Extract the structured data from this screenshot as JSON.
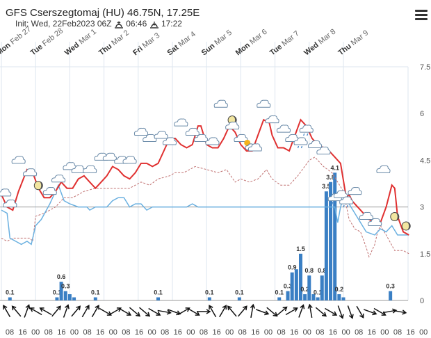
{
  "header": {
    "title": "GFS Cserszegtomaj (HU) 46.75N, 17.25E",
    "init_prefix": "Init: Wed, 22Feb2023 06Z",
    "sunrise": "06:46",
    "sunset": "17:22"
  },
  "colors": {
    "wave_height": "#e03030",
    "swell": "#6ab0e0",
    "wind_wave": "#c07070",
    "precip": "#3a7fc4",
    "grid": "#dde6ef",
    "refline": "#999999"
  },
  "chart_data": {
    "type": "line+bar",
    "y_right": {
      "ticks": [
        "0",
        "1.5",
        "3",
        "4.5",
        "6",
        "7.5"
      ],
      "range": [
        0,
        7.5
      ],
      "reference_line": 3
    },
    "days": [
      {
        "dow": "Mon",
        "date": "Feb 27"
      },
      {
        "dow": "Tue",
        "date": "Feb 28"
      },
      {
        "dow": "Wed",
        "date": "Mar 1"
      },
      {
        "dow": "Thu",
        "date": "Mar 2"
      },
      {
        "dow": "Fri",
        "date": "Mar 3"
      },
      {
        "dow": "Sat",
        "date": "Mar 4"
      },
      {
        "dow": "Sun",
        "date": "Mar 5"
      },
      {
        "dow": "Mon",
        "date": "Mar 6"
      },
      {
        "dow": "Tue",
        "date": "Mar 7"
      },
      {
        "dow": "Wed",
        "date": "Mar 8"
      },
      {
        "dow": "Thu",
        "date": "Mar 9"
      }
    ],
    "hour_labels": [
      "08",
      "16",
      "00",
      "08",
      "16",
      "00",
      "08",
      "16",
      "00",
      "08",
      "16",
      "00",
      "08",
      "16",
      "00",
      "08",
      "16",
      "00",
      "08",
      "16",
      "00",
      "08",
      "16",
      "00",
      "08",
      "16",
      "00",
      "08",
      "16",
      "00",
      "08",
      "16",
      "00"
    ],
    "series_main": [
      [
        0,
        3.4
      ],
      [
        4,
        3.0
      ],
      [
        8,
        2.9
      ],
      [
        12,
        3.5
      ],
      [
        18,
        4.2
      ],
      [
        22,
        4.1
      ],
      [
        26,
        3.6
      ],
      [
        30,
        3.3
      ],
      [
        34,
        3.3
      ],
      [
        38,
        3.5
      ],
      [
        42,
        3.8
      ],
      [
        46,
        3.6
      ],
      [
        50,
        3.6
      ],
      [
        54,
        3.9
      ],
      [
        58,
        4.0
      ],
      [
        62,
        3.8
      ],
      [
        66,
        3.6
      ],
      [
        70,
        3.8
      ],
      [
        74,
        4.0
      ],
      [
        78,
        4.3
      ],
      [
        82,
        4.2
      ],
      [
        86,
        4.0
      ],
      [
        90,
        3.9
      ],
      [
        94,
        4.1
      ],
      [
        98,
        4.4
      ],
      [
        102,
        4.4
      ],
      [
        106,
        4.3
      ],
      [
        110,
        4.4
      ],
      [
        114,
        4.8
      ],
      [
        118,
        5.2
      ],
      [
        122,
        5.2
      ],
      [
        126,
        5.0
      ],
      [
        130,
        4.9
      ],
      [
        134,
        5.0
      ],
      [
        138,
        5.6
      ],
      [
        140,
        5.6
      ],
      [
        144,
        5.0
      ],
      [
        148,
        4.9
      ],
      [
        152,
        4.9
      ],
      [
        156,
        5.2
      ],
      [
        160,
        5.6
      ],
      [
        164,
        5.4
      ],
      [
        168,
        5.0
      ],
      [
        172,
        4.8
      ],
      [
        176,
        4.8
      ],
      [
        180,
        5.3
      ],
      [
        184,
        5.8
      ],
      [
        188,
        5.7
      ],
      [
        190,
        5.3
      ],
      [
        194,
        4.9
      ],
      [
        198,
        4.9
      ],
      [
        202,
        4.8
      ],
      [
        206,
        5.3
      ],
      [
        210,
        5.8
      ],
      [
        214,
        5.6
      ],
      [
        218,
        5.2
      ],
      [
        222,
        5.0
      ],
      [
        226,
        4.9
      ],
      [
        230,
        4.8
      ],
      [
        234,
        4.6
      ],
      [
        238,
        4.4
      ],
      [
        242,
        3.3
      ],
      [
        244,
        3.4
      ],
      [
        246,
        3.2
      ],
      [
        250,
        3.0
      ],
      [
        254,
        2.8
      ],
      [
        258,
        2.6
      ],
      [
        262,
        2.5
      ],
      [
        266,
        2.5
      ],
      [
        270,
        3.0
      ],
      [
        274,
        3.7
      ],
      [
        276,
        3.6
      ],
      [
        278,
        2.7
      ],
      [
        282,
        2.2
      ],
      [
        286,
        2.1
      ]
    ],
    "series_swell": [
      [
        0,
        2.9
      ],
      [
        4,
        2.8
      ],
      [
        6,
        2.0
      ],
      [
        10,
        1.9
      ],
      [
        14,
        1.8
      ],
      [
        18,
        1.9
      ],
      [
        21,
        1.8
      ],
      [
        24,
        2.4
      ],
      [
        28,
        2.6
      ],
      [
        34,
        3.1
      ],
      [
        40,
        3.7
      ],
      [
        44,
        3.2
      ],
      [
        48,
        3.1
      ],
      [
        54,
        3.0
      ],
      [
        60,
        3.0
      ],
      [
        62,
        2.9
      ],
      [
        66,
        3.0
      ],
      [
        70,
        3.0
      ],
      [
        74,
        3.0
      ],
      [
        78,
        3.2
      ],
      [
        82,
        3.3
      ],
      [
        86,
        3.3
      ],
      [
        90,
        3.0
      ],
      [
        94,
        3.1
      ],
      [
        98,
        3.1
      ],
      [
        102,
        2.9
      ],
      [
        106,
        3.0
      ],
      [
        110,
        3.0
      ],
      [
        114,
        3.0
      ],
      [
        118,
        3.0
      ],
      [
        122,
        3.0
      ],
      [
        126,
        3.0
      ],
      [
        130,
        3.0
      ],
      [
        134,
        3.1
      ],
      [
        138,
        3.0
      ],
      [
        142,
        3.0
      ],
      [
        146,
        3.0
      ],
      [
        150,
        3.0
      ],
      [
        154,
        3.0
      ],
      [
        158,
        3.0
      ],
      [
        162,
        3.0
      ],
      [
        166,
        3.0
      ],
      [
        170,
        3.0
      ],
      [
        174,
        3.0
      ],
      [
        178,
        3.0
      ],
      [
        182,
        3.0
      ],
      [
        186,
        3.0
      ],
      [
        190,
        3.0
      ],
      [
        194,
        3.0
      ],
      [
        198,
        3.0
      ],
      [
        202,
        3.0
      ],
      [
        206,
        3.0
      ],
      [
        210,
        3.0
      ],
      [
        214,
        3.0
      ],
      [
        218,
        3.0
      ],
      [
        222,
        3.0
      ],
      [
        226,
        3.0
      ],
      [
        230,
        3.0
      ],
      [
        234,
        3.0
      ],
      [
        236,
        2.5
      ],
      [
        238,
        3.0
      ],
      [
        240,
        3.3
      ],
      [
        244,
        3.1
      ],
      [
        248,
        2.8
      ],
      [
        252,
        2.5
      ],
      [
        256,
        2.2
      ],
      [
        262,
        2.1
      ],
      [
        266,
        2.3
      ],
      [
        270,
        2.2
      ],
      [
        274,
        2.4
      ],
      [
        278,
        2.1
      ],
      [
        286,
        2.1
      ]
    ],
    "series_wind": [
      [
        0,
        2.0
      ],
      [
        4,
        1.9
      ],
      [
        8,
        2.0
      ],
      [
        14,
        2.0
      ],
      [
        20,
        2.0
      ],
      [
        22,
        1.9
      ],
      [
        24,
        2.7
      ],
      [
        30,
        2.8
      ],
      [
        38,
        3.0
      ],
      [
        44,
        3.3
      ],
      [
        50,
        3.3
      ],
      [
        58,
        3.5
      ],
      [
        66,
        3.6
      ],
      [
        74,
        3.6
      ],
      [
        82,
        3.6
      ],
      [
        90,
        3.6
      ],
      [
        98,
        3.8
      ],
      [
        104,
        3.7
      ],
      [
        110,
        3.9
      ],
      [
        118,
        4.0
      ],
      [
        122,
        4.1
      ],
      [
        128,
        4.1
      ],
      [
        136,
        4.3
      ],
      [
        144,
        4.2
      ],
      [
        152,
        4.1
      ],
      [
        158,
        4.2
      ],
      [
        164,
        3.8
      ],
      [
        168,
        3.9
      ],
      [
        174,
        3.8
      ],
      [
        180,
        3.9
      ],
      [
        186,
        4.2
      ],
      [
        190,
        3.9
      ],
      [
        196,
        3.7
      ],
      [
        202,
        3.7
      ],
      [
        208,
        4.0
      ],
      [
        216,
        4.5
      ],
      [
        220,
        4.6
      ],
      [
        226,
        4.3
      ],
      [
        232,
        4.1
      ],
      [
        236,
        3.8
      ],
      [
        240,
        3.5
      ],
      [
        244,
        2.6
      ],
      [
        248,
        2.3
      ],
      [
        252,
        2.2
      ],
      [
        256,
        1.7
      ],
      [
        258,
        1.4
      ],
      [
        262,
        1.8
      ],
      [
        264,
        2.2
      ],
      [
        266,
        2.4
      ],
      [
        270,
        2.1
      ],
      [
        276,
        1.6
      ],
      [
        282,
        1.6
      ],
      [
        286,
        1.5
      ]
    ],
    "precipitation": [
      {
        "x": 6,
        "value": 0.1,
        "label": "0.1"
      },
      {
        "x": 39,
        "value": 0.1,
        "label": "0.1"
      },
      {
        "x": 42,
        "value": 0.6,
        "label": "0.6"
      },
      {
        "x": 45,
        "value": 0.3,
        "label": "0.3"
      },
      {
        "x": 48,
        "value": 0.2,
        "label": ""
      },
      {
        "x": 51,
        "value": 0.1,
        "label": ""
      },
      {
        "x": 66,
        "value": 0.1,
        "label": "0.1"
      },
      {
        "x": 110,
        "value": 0.1,
        "label": "0.1"
      },
      {
        "x": 146,
        "value": 0.1,
        "label": "0.1"
      },
      {
        "x": 167,
        "value": 0.1,
        "label": "0.1"
      },
      {
        "x": 195,
        "value": 0.1,
        "label": "0.1"
      },
      {
        "x": 201,
        "value": 0.3,
        "label": "0.3"
      },
      {
        "x": 204,
        "value": 0.9,
        "label": "0.9"
      },
      {
        "x": 207,
        "value": 1.0,
        "label": ""
      },
      {
        "x": 210,
        "value": 1.5,
        "label": "1.5"
      },
      {
        "x": 213,
        "value": 0.2,
        "label": "0.2"
      },
      {
        "x": 216,
        "value": 0.8,
        "label": "0.8"
      },
      {
        "x": 219,
        "value": 0.2,
        "label": ""
      },
      {
        "x": 222,
        "value": 0.1,
        "label": "0.1"
      },
      {
        "x": 225,
        "value": 0.8,
        "label": "0.8"
      },
      {
        "x": 228,
        "value": 3.5,
        "label": "3.5"
      },
      {
        "x": 231,
        "value": 3.8,
        "label": "3.8"
      },
      {
        "x": 234,
        "value": 4.1,
        "label": "4.1"
      },
      {
        "x": 237,
        "value": 0.2,
        "label": "0.2"
      },
      {
        "x": 240,
        "value": 0.1,
        "label": ""
      },
      {
        "x": 273,
        "value": 0.3,
        "label": "0.3"
      }
    ],
    "weather_icons": [
      {
        "x": 2,
        "y": 3.35,
        "type": "cloud"
      },
      {
        "x": 6,
        "y": 3.0,
        "type": "cloud"
      },
      {
        "x": 12,
        "y": 4.4,
        "type": "cloud"
      },
      {
        "x": 20,
        "y": 4.0,
        "type": "cloud"
      },
      {
        "x": 26,
        "y": 3.6,
        "type": "moon"
      },
      {
        "x": 34,
        "y": 3.4,
        "type": "cloud"
      },
      {
        "x": 40,
        "y": 3.8,
        "type": "cloud"
      },
      {
        "x": 48,
        "y": 4.2,
        "type": "cloud"
      },
      {
        "x": 54,
        "y": 4.1,
        "type": "cloud"
      },
      {
        "x": 62,
        "y": 4.1,
        "type": "cloud"
      },
      {
        "x": 70,
        "y": 4.5,
        "type": "cloud"
      },
      {
        "x": 76,
        "y": 4.5,
        "type": "cloud"
      },
      {
        "x": 84,
        "y": 4.4,
        "type": "cloud"
      },
      {
        "x": 90,
        "y": 4.4,
        "type": "cloud"
      },
      {
        "x": 98,
        "y": 5.3,
        "type": "cloud"
      },
      {
        "x": 104,
        "y": 5.1,
        "type": "cloud"
      },
      {
        "x": 112,
        "y": 5.2,
        "type": "cloud"
      },
      {
        "x": 118,
        "y": 5.0,
        "type": "cloud"
      },
      {
        "x": 126,
        "y": 5.6,
        "type": "cloud"
      },
      {
        "x": 134,
        "y": 5.3,
        "type": "cloud"
      },
      {
        "x": 140,
        "y": 5.1,
        "type": "cloud"
      },
      {
        "x": 148,
        "y": 5.0,
        "type": "cloud"
      },
      {
        "x": 154,
        "y": 6.2,
        "type": "cloud"
      },
      {
        "x": 162,
        "y": 5.7,
        "type": "moon"
      },
      {
        "x": 162,
        "y": 5.5,
        "type": "cloud"
      },
      {
        "x": 168,
        "y": 5.1,
        "type": "cloud"
      },
      {
        "x": 174,
        "y": 4.9,
        "type": "sun-cloud"
      },
      {
        "x": 178,
        "y": 4.8,
        "type": "cloud"
      },
      {
        "x": 184,
        "y": 6.2,
        "type": "cloud"
      },
      {
        "x": 190,
        "y": 5.7,
        "type": "cloud"
      },
      {
        "x": 198,
        "y": 5.4,
        "type": "cloud"
      },
      {
        "x": 204,
        "y": 5.1,
        "type": "cloud"
      },
      {
        "x": 210,
        "y": 5.0,
        "type": "rain-cloud"
      },
      {
        "x": 214,
        "y": 5.4,
        "type": "rain-cloud"
      },
      {
        "x": 220,
        "y": 4.9,
        "type": "cloud"
      },
      {
        "x": 226,
        "y": 4.7,
        "type": "cloud"
      },
      {
        "x": 234,
        "y": 3.2,
        "type": "rain-cloud"
      },
      {
        "x": 238,
        "y": 3.3,
        "type": "cloud"
      },
      {
        "x": 242,
        "y": 3.1,
        "type": "rain-cloud"
      },
      {
        "x": 248,
        "y": 3.4,
        "type": "cloud"
      },
      {
        "x": 256,
        "y": 2.6,
        "type": "cloud"
      },
      {
        "x": 262,
        "y": 2.4,
        "type": "cloud"
      },
      {
        "x": 268,
        "y": 4.1,
        "type": "cloud"
      },
      {
        "x": 276,
        "y": 2.6,
        "type": "moon"
      },
      {
        "x": 284,
        "y": 2.3,
        "type": "moon"
      }
    ],
    "wind_directions": [
      330,
      320,
      20,
      300,
      300,
      40,
      20,
      40,
      30,
      30,
      120,
      60,
      120,
      130,
      130,
      120,
      100,
      110,
      60,
      120,
      90,
      330,
      30,
      320,
      40,
      10,
      110,
      130,
      50,
      60,
      20,
      350,
      130,
      120,
      160,
      160,
      150,
      110,
      120,
      80,
      100
    ]
  }
}
